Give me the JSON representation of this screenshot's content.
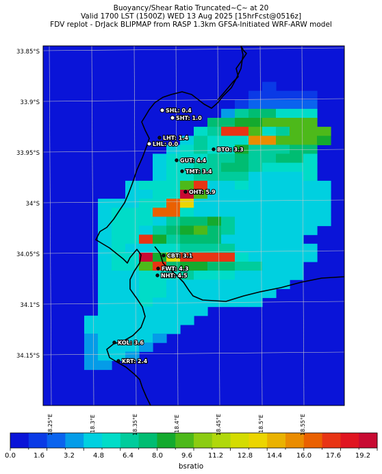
{
  "title": {
    "line1": "Buoyancy/Shear Ratio Truncated~C~    at 20",
    "line2": "Valid 1700 LST (1500Z) WED 13 Aug 2025 [15hrFcst@0516z]",
    "line3": "FDV replot - DrJack BLIPMAP from RASP 1.3km GFSA-Initiated WRF-ARW model"
  },
  "map": {
    "lat_labels": [
      "33.85°S",
      "33.9°S",
      "33.95°S",
      "34°S",
      "34.05°S",
      "34.1°S",
      "34.15°S"
    ],
    "lon_labels": [
      "18.25°E",
      "18.3°E",
      "18.35°E",
      "18.4°E",
      "18.45°E",
      "18.5°E",
      "18.55°E"
    ],
    "stations": [
      {
        "code": "SHL",
        "value": "0.4",
        "label": "SHL: 0.4"
      },
      {
        "code": "SHT",
        "value": "1.0",
        "label": "SHT: 1.0"
      },
      {
        "code": "LHT",
        "value": "1.4",
        "label": "LHT: 1.4"
      },
      {
        "code": "LHL",
        "value": "0.0",
        "label": "LHL: 0.0"
      },
      {
        "code": "BTO",
        "value": "3.3",
        "label": "BTO: 3.3"
      },
      {
        "code": "GUT",
        "value": "4.4",
        "label": "GUT: 4.4"
      },
      {
        "code": "TMT",
        "value": "3.4",
        "label": "TMT: 3.4"
      },
      {
        "code": "OHT",
        "value": "5.9",
        "label": "OHT: 5.9"
      },
      {
        "code": "CBT",
        "value": "3.1",
        "label": "CBT: 3.1"
      },
      {
        "code": "FWT",
        "value": "4.3",
        "label": "FWT: 4.3"
      },
      {
        "code": "NHT",
        "value": "4.5",
        "label": "NHT: 4.5"
      },
      {
        "code": "KOL",
        "value": "3.6",
        "label": "KOL: 3.6"
      },
      {
        "code": "KRT",
        "value": "2.4",
        "label": "KRT: 2.4"
      }
    ]
  },
  "colorbar": {
    "label": "bsratio",
    "ticks": [
      "0.0",
      "1.6",
      "3.2",
      "4.8",
      "6.4",
      "8.0",
      "9.6",
      "11.2",
      "12.8",
      "14.4",
      "16.0",
      "17.6",
      "19.2"
    ],
    "colors": [
      "#0a14d8",
      "#0a3ae6",
      "#0a63ee",
      "#049ce8",
      "#00d0e0",
      "#00dcc8",
      "#00cc9c",
      "#00bd72",
      "#14aa2e",
      "#4db91a",
      "#8ccc12",
      "#b0d80c",
      "#d4dc00",
      "#ecd500",
      "#eab200",
      "#ea8c00",
      "#ea6000",
      "#e83414",
      "#e01420",
      "#c80a32"
    ]
  },
  "grid_rows": [
    "00000000000000000000",
    "00000000000000000000",
    "00000000000000000000",
    "00000000000000000000",
    "00000000000000001000",
    "00000000000000011111",
    "00000000000000122222",
    "00000000000003677555",
    "00000000000077889999",
    "0000000000056HH956999",
    "000000000046555FF9998",
    "00000000045655866677",
    "00000000455566766775",
    "00000000455667765555",
    "00000000455666644445",
    "00000045559H445444444",
    "0000004455J9444444444",
    "000044455GD4444444444",
    "00004555GG54444444444",
    "000045554677864444444",
    "00004554678976444444",
    "0000455H86777444444",
    "00004544556666444444",
    "0000455J8DHHHH544444",
    "00004559H7887766444",
    "0000444555655544444",
    "000044455444444444",
    "00004445544444444",
    "0000444544444444",
    "000044444444",
    "00044444444",
    "0004444444",
    "000344443",
    "00034443",
    "0003443",
    "00033",
    "000",
    "000",
    "000",
    "000"
  ]
}
